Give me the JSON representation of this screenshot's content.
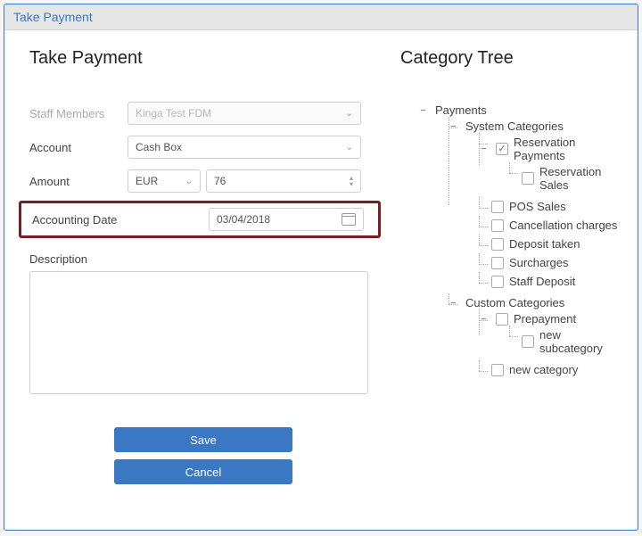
{
  "window": {
    "title": "Take Payment"
  },
  "left": {
    "heading": "Take Payment",
    "labels": {
      "staff": "Staff Members",
      "account": "Account",
      "amount": "Amount",
      "accounting_date": "Accounting Date",
      "description": "Description"
    },
    "fields": {
      "staff_value": "Kinga Test FDM",
      "account_value": "Cash Box",
      "currency_value": "EUR",
      "amount_value": "76",
      "date_value": "03/04/2018",
      "description_value": ""
    },
    "buttons": {
      "save": "Save",
      "cancel": "Cancel"
    }
  },
  "right": {
    "heading": "Category Tree",
    "tree": {
      "payments": "Payments",
      "system": "System Categories",
      "reservation_payments": "Reservation Payments",
      "reservation_sales": "Reservation Sales",
      "pos_sales": "POS Sales",
      "cancellation": "Cancellation charges",
      "deposit_taken": "Deposit taken",
      "surcharges": "Surcharges",
      "staff_deposit": "Staff Deposit",
      "custom": "Custom Categories",
      "prepayment": "Prepayment",
      "new_sub": "new subcategory",
      "new_cat": "new category"
    }
  },
  "colors": {
    "accent": "#3b78c4",
    "highlight_border": "#7a1f1f",
    "border": "#cfcfcf",
    "titlebar_bg": "#e6e6e6"
  }
}
